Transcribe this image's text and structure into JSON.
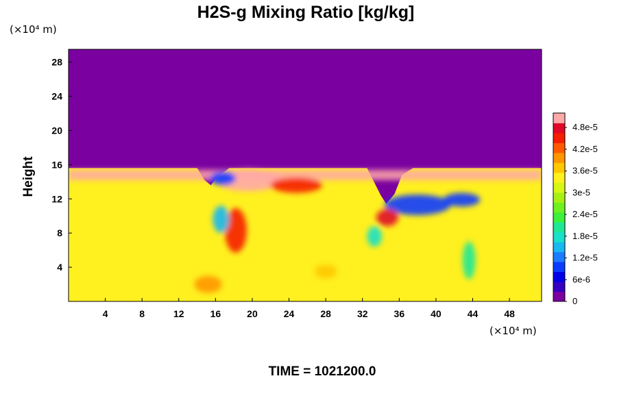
{
  "chart_data": {
    "type": "heatmap",
    "title": "H2S-g Mixing Ratio [kg/kg]",
    "ylabel": "Height",
    "xlabel": "",
    "x_unit": "(×10⁴ m)",
    "y_unit": "(×10⁴ m)",
    "footer": "TIME = 1021200.0",
    "xlim": [
      0,
      51.5
    ],
    "ylim": [
      0,
      29.5
    ],
    "x_ticks": [
      {
        "value": 4,
        "label": "4"
      },
      {
        "value": 8,
        "label": "8"
      },
      {
        "value": 12,
        "label": "12"
      },
      {
        "value": 16,
        "label": "16"
      },
      {
        "value": 20,
        "label": "20"
      },
      {
        "value": 24,
        "label": "24"
      },
      {
        "value": 28,
        "label": "28"
      },
      {
        "value": 32,
        "label": "32"
      },
      {
        "value": 36,
        "label": "36"
      },
      {
        "value": 40,
        "label": "40"
      },
      {
        "value": 44,
        "label": "44"
      },
      {
        "value": 48,
        "label": "48"
      }
    ],
    "y_ticks": [
      {
        "value": 4,
        "label": "4"
      },
      {
        "value": 8,
        "label": "8"
      },
      {
        "value": 12,
        "label": "12"
      },
      {
        "value": 16,
        "label": "16"
      },
      {
        "value": 20,
        "label": "20"
      },
      {
        "value": 24,
        "label": "24"
      },
      {
        "value": 28,
        "label": "28"
      }
    ],
    "colorbar": {
      "min": 0,
      "max": 5.2e-05,
      "colors": [
        "#7a00a0",
        "#3500c0",
        "#0000e6",
        "#0a3cff",
        "#1c7cff",
        "#18b8f0",
        "#19e0c8",
        "#1ee896",
        "#3cf03c",
        "#6ff020",
        "#a8f014",
        "#d8f614",
        "#fff020",
        "#ffc800",
        "#ff9600",
        "#ff5a00",
        "#f51e00",
        "#e00a28",
        "#ffa8a8"
      ],
      "ticks": [
        {
          "value": 0,
          "label": "0"
        },
        {
          "value": 6e-06,
          "label": "6e-6"
        },
        {
          "value": 1.2e-05,
          "label": "1.2e-5"
        },
        {
          "value": 1.8e-05,
          "label": "1.8e-5"
        },
        {
          "value": 2.4e-05,
          "label": "2.4e-5"
        },
        {
          "value": 3e-05,
          "label": "3e-5"
        },
        {
          "value": 3.6e-05,
          "label": "3.6e-5"
        },
        {
          "value": 4.2e-05,
          "label": "4.2e-5"
        },
        {
          "value": 4.8e-05,
          "label": "4.8e-5"
        }
      ]
    },
    "field": {
      "background_above_interface": 0,
      "interior_value": 3.3e-05,
      "interface_height": [
        [
          0,
          15.6
        ],
        [
          14,
          15.6
        ],
        [
          14.8,
          14.2
        ],
        [
          15.5,
          13.6
        ],
        [
          16.2,
          14.6
        ],
        [
          17.5,
          15.6
        ],
        [
          32.5,
          15.6
        ],
        [
          34,
          12.4
        ],
        [
          34.6,
          11.4
        ],
        [
          35.5,
          12.6
        ],
        [
          36.3,
          14.8
        ],
        [
          37.5,
          15.6
        ],
        [
          51.5,
          15.6
        ]
      ],
      "features": [
        {
          "kind": "band",
          "x": [
            0,
            51.5
          ],
          "y": [
            14.2,
            15.4
          ],
          "value": 5e-05
        },
        {
          "kind": "blob",
          "x": 19.6,
          "y": 14.2,
          "rx": 3.6,
          "ry": 1.3,
          "value": 5e-05
        },
        {
          "kind": "blob",
          "x": 24.8,
          "y": 13.6,
          "rx": 2.8,
          "ry": 0.9,
          "value": 4.6e-05
        },
        {
          "kind": "blob",
          "x": 18.2,
          "y": 8.3,
          "rx": 1.2,
          "ry": 2.6,
          "value": 4.5e-05
        },
        {
          "kind": "blob",
          "x": 16.8,
          "y": 14.4,
          "rx": 1.4,
          "ry": 0.8,
          "value": 1e-05
        },
        {
          "kind": "blob",
          "x": 16.6,
          "y": 9.6,
          "rx": 0.9,
          "ry": 1.6,
          "value": 1.5e-05
        },
        {
          "kind": "blob",
          "x": 38.0,
          "y": 11.3,
          "rx": 3.6,
          "ry": 1.2,
          "value": 1e-05
        },
        {
          "kind": "blob",
          "x": 42.8,
          "y": 11.9,
          "rx": 2.0,
          "ry": 0.8,
          "value": 9e-06
        },
        {
          "kind": "blob",
          "x": 34.7,
          "y": 9.8,
          "rx": 1.2,
          "ry": 1.0,
          "value": 4.8e-05
        },
        {
          "kind": "blob",
          "x": 33.3,
          "y": 7.6,
          "rx": 0.8,
          "ry": 1.2,
          "value": 1.8e-05
        },
        {
          "kind": "blob",
          "x": 43.6,
          "y": 4.8,
          "rx": 0.7,
          "ry": 2.2,
          "value": 2e-05
        },
        {
          "kind": "blob",
          "x": 28.0,
          "y": 3.5,
          "rx": 1.2,
          "ry": 0.8,
          "value": 3.7e-05
        },
        {
          "kind": "blob",
          "x": 15.2,
          "y": 2.0,
          "rx": 1.5,
          "ry": 1.0,
          "value": 3.9e-05
        }
      ]
    }
  }
}
